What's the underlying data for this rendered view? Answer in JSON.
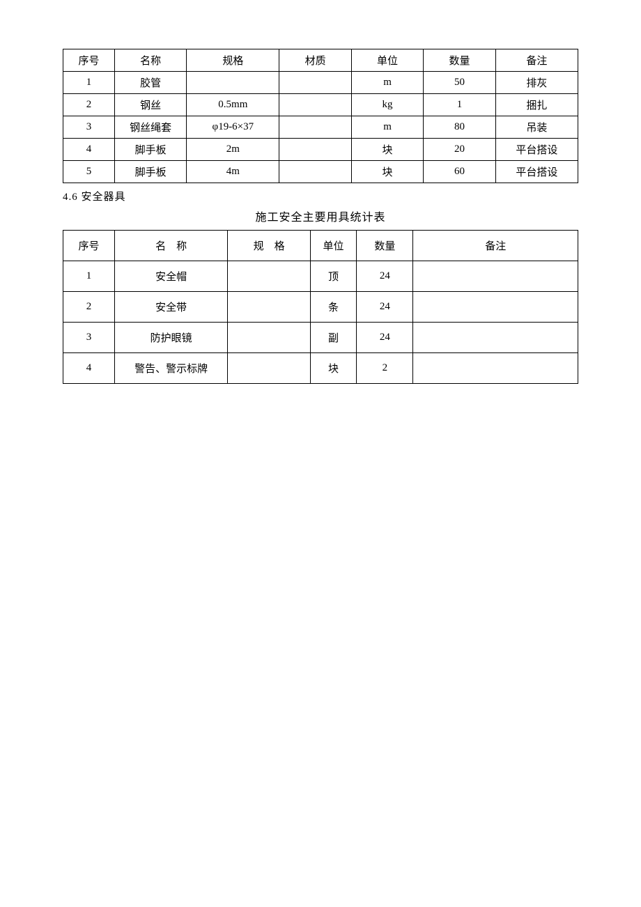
{
  "table1": {
    "columns": [
      "序号",
      "名称",
      "规格",
      "材质",
      "单位",
      "数量",
      "备注"
    ],
    "col_widths": [
      "10%",
      "14%",
      "18%",
      "14%",
      "14%",
      "14%",
      "16%"
    ],
    "rows": [
      [
        "1",
        "胶管",
        "",
        "",
        "m",
        "50",
        "排灰"
      ],
      [
        "2",
        "钢丝",
        "0.5mm",
        "",
        "kg",
        "1",
        "捆扎"
      ],
      [
        "3",
        "钢丝绳套",
        "φ19-6×37",
        "",
        "m",
        "80",
        "吊装"
      ],
      [
        "4",
        "脚手板",
        "2m",
        "",
        "块",
        "20",
        "平台搭设"
      ],
      [
        "5",
        "脚手板",
        "4m",
        "",
        "块",
        "60",
        "平台搭设"
      ]
    ]
  },
  "section_label": "4.6 安全器具",
  "table2_title": "施工安全主要用具统计表",
  "table2": {
    "columns": [
      "序号",
      "名　称",
      "规　格",
      "单位",
      "数量",
      "备注"
    ],
    "col_widths": [
      "10%",
      "22%",
      "16%",
      "9%",
      "11%",
      "32%"
    ],
    "rows": [
      [
        "1",
        "安全帽",
        "",
        "顶",
        "24",
        ""
      ],
      [
        "2",
        "安全带",
        "",
        "条",
        "24",
        ""
      ],
      [
        "3",
        "防护眼镜",
        "",
        "副",
        "24",
        ""
      ],
      [
        "4",
        "警告、警示标牌",
        "",
        "块",
        "2",
        ""
      ]
    ]
  },
  "colors": {
    "border": "#000000",
    "background": "#ffffff",
    "text": "#000000"
  },
  "fonts": {
    "body_size": 15,
    "title_size": 16
  }
}
